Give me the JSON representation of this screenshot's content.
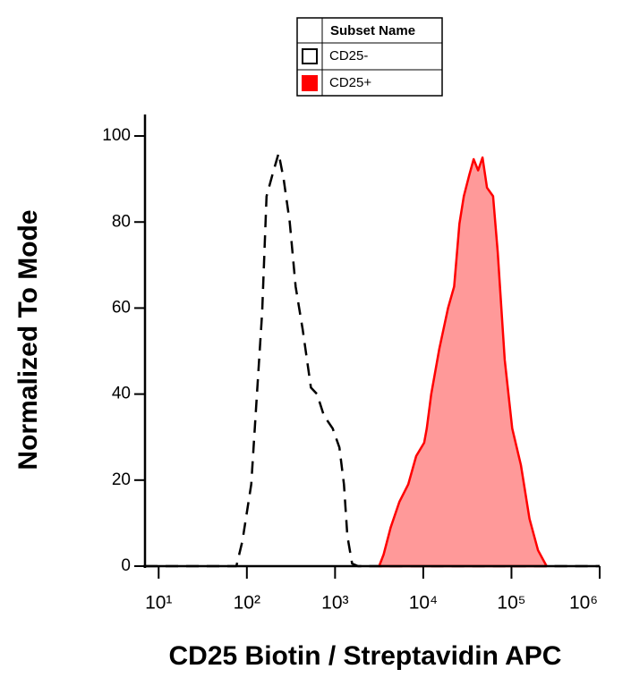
{
  "chart_data": {
    "type": "histogram-overlay",
    "x_label": "CD25 Biotin / Streptavidin APC",
    "y_label": "Normalized To Mode",
    "legend_title": "Subset Name",
    "xscale": "log",
    "xlim": [
      7,
      1000000
    ],
    "xticks": [
      {
        "value": 10,
        "label": "10¹"
      },
      {
        "value": 100,
        "label": "10²"
      },
      {
        "value": 1000,
        "label": "10³"
      },
      {
        "value": 10000,
        "label": "10⁴"
      },
      {
        "value": 100000,
        "label": "10⁵"
      },
      {
        "value": 1000000,
        "label": "10⁶"
      }
    ],
    "ylim": [
      0,
      105
    ],
    "yticks": [
      0,
      20,
      40,
      60,
      80,
      100
    ],
    "series": [
      {
        "name": "CD25-",
        "color": "#000000",
        "dashed": true,
        "x": [
          7,
          76,
          89,
          112,
          134,
          149,
          167,
          195,
          229,
          261,
          306,
          357,
          430,
          533,
          625,
          747,
          940,
          1120,
          1260,
          1380,
          1560,
          1820,
          1000000
        ],
        "values": [
          0,
          0,
          5.8,
          19,
          44,
          59,
          86,
          91,
          96,
          90,
          80,
          65,
          55,
          41.5,
          40,
          35,
          32,
          27.6,
          19,
          7,
          0.6,
          0,
          0
        ]
      },
      {
        "name": "CD25+",
        "color": "#ff0000",
        "fill": "#ff9999",
        "x": [
          3160,
          3550,
          4270,
          5370,
          6760,
          8320,
          10230,
          10960,
          12300,
          15200,
          19100,
          22400,
          25700,
          28800,
          33300,
          37300,
          41900,
          47000,
          52800,
          61900,
          69900,
          83800,
          102000,
          128000,
          160000,
          200000,
          250000
        ],
        "values": [
          0,
          2.7,
          9,
          15,
          19,
          25.6,
          28.7,
          32,
          40,
          50.5,
          60,
          65,
          79.6,
          86,
          91,
          94.6,
          92,
          95,
          88,
          86,
          73,
          48,
          32,
          23.5,
          11,
          3.7,
          0
        ]
      }
    ]
  }
}
